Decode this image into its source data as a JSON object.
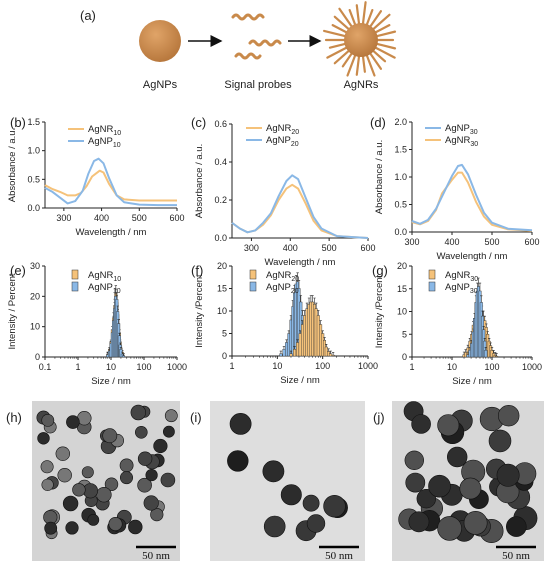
{
  "figure": {
    "top": {
      "label": "(a)",
      "captions": [
        "AgNPs",
        "Signal probes",
        "AgNRs"
      ],
      "colors": {
        "particle": "#c98a4b",
        "probe": "#c98a4b",
        "arrow": "#111111"
      }
    },
    "tem": [
      {
        "label": "(h)",
        "scalebar": "50 nm"
      },
      {
        "label": "(i)",
        "scalebar": "50 nm"
      },
      {
        "label": "(j)",
        "scalebar": "50 nm"
      }
    ]
  },
  "colors": {
    "orange": "#f5c27a",
    "blue": "#8ab8e6",
    "bar_outline": "#333333"
  },
  "chart_data": [
    {
      "id": "b",
      "label": "(b)",
      "type": "line",
      "xlabel": "Wavelength / nm",
      "ylabel": "Absorbance / a.u.",
      "xlim": [
        250,
        600
      ],
      "ylim": [
        0,
        1.5
      ],
      "xticks": [
        "300",
        "400",
        "500",
        "600"
      ],
      "yticks": [
        "0.0",
        "0.5",
        "1.0",
        "1.5"
      ],
      "legend": [
        {
          "main": "AgNR",
          "sub": "10",
          "color": "orange"
        },
        {
          "main": "AgNP",
          "sub": "10",
          "color": "blue"
        }
      ],
      "series": [
        {
          "name": "AgNR10",
          "color": "orange",
          "points": [
            [
              250,
              0.4
            ],
            [
              270,
              0.33
            ],
            [
              290,
              0.28
            ],
            [
              310,
              0.22
            ],
            [
              330,
              0.22
            ],
            [
              345,
              0.26
            ],
            [
              360,
              0.38
            ],
            [
              375,
              0.55
            ],
            [
              385,
              0.6
            ],
            [
              395,
              0.65
            ],
            [
              405,
              0.62
            ],
            [
              420,
              0.42
            ],
            [
              440,
              0.22
            ],
            [
              460,
              0.15
            ],
            [
              500,
              0.13
            ],
            [
              550,
              0.13
            ],
            [
              600,
              0.13
            ]
          ]
        },
        {
          "name": "AgNP10",
          "color": "blue",
          "points": [
            [
              250,
              0.35
            ],
            [
              270,
              0.28
            ],
            [
              290,
              0.18
            ],
            [
              310,
              0.08
            ],
            [
              330,
              0.12
            ],
            [
              350,
              0.3
            ],
            [
              365,
              0.6
            ],
            [
              380,
              0.82
            ],
            [
              392,
              0.86
            ],
            [
              405,
              0.78
            ],
            [
              420,
              0.52
            ],
            [
              440,
              0.22
            ],
            [
              460,
              0.1
            ],
            [
              500,
              0.06
            ],
            [
              550,
              0.05
            ],
            [
              600,
              0.05
            ]
          ]
        }
      ]
    },
    {
      "id": "c",
      "label": "(c)",
      "type": "line",
      "xlabel": "Wavelength / nm",
      "ylabel": "Absorbance / a.u.",
      "xlim": [
        250,
        600
      ],
      "ylim": [
        0,
        0.6
      ],
      "xticks": [
        "300",
        "400",
        "500",
        "600"
      ],
      "yticks": [
        "0.0",
        "0.2",
        "0.4",
        "0.6"
      ],
      "legend": [
        {
          "main": "AgNR",
          "sub": "20",
          "color": "orange"
        },
        {
          "main": "AgNP",
          "sub": "20",
          "color": "blue"
        }
      ],
      "series": [
        {
          "name": "AgNR20",
          "color": "orange",
          "points": [
            [
              250,
              0.08
            ],
            [
              270,
              0.05
            ],
            [
              290,
              0.03
            ],
            [
              310,
              0.04
            ],
            [
              330,
              0.07
            ],
            [
              350,
              0.12
            ],
            [
              370,
              0.2
            ],
            [
              390,
              0.26
            ],
            [
              405,
              0.28
            ],
            [
              420,
              0.26
            ],
            [
              440,
              0.18
            ],
            [
              460,
              0.09
            ],
            [
              480,
              0.04
            ],
            [
              520,
              0.01
            ],
            [
              600,
              0.0
            ]
          ]
        },
        {
          "name": "AgNP20",
          "color": "blue",
          "points": [
            [
              250,
              0.08
            ],
            [
              270,
              0.05
            ],
            [
              290,
              0.03
            ],
            [
              310,
              0.04
            ],
            [
              330,
              0.08
            ],
            [
              350,
              0.13
            ],
            [
              370,
              0.22
            ],
            [
              390,
              0.3
            ],
            [
              405,
              0.33
            ],
            [
              420,
              0.31
            ],
            [
              440,
              0.21
            ],
            [
              460,
              0.11
            ],
            [
              480,
              0.05
            ],
            [
              520,
              0.01
            ],
            [
              600,
              0.0
            ]
          ]
        }
      ]
    },
    {
      "id": "d",
      "label": "(d)",
      "type": "line",
      "xlabel": "Wavelength / nm",
      "ylabel": "Absorbance / a.u.",
      "xlim": [
        300,
        600
      ],
      "ylim": [
        0,
        2.0
      ],
      "xticks": [
        "300",
        "400",
        "500",
        "600"
      ],
      "yticks": [
        "0.0",
        "0.5",
        "1.0",
        "1.5",
        "2.0"
      ],
      "legend": [
        {
          "main": "AgNP",
          "sub": "30",
          "color": "blue"
        },
        {
          "main": "AgNR",
          "sub": "30",
          "color": "orange"
        }
      ],
      "series": [
        {
          "name": "AgNR30",
          "color": "orange",
          "points": [
            [
              300,
              0.18
            ],
            [
              320,
              0.14
            ],
            [
              340,
              0.2
            ],
            [
              360,
              0.4
            ],
            [
              375,
              0.7
            ],
            [
              385,
              0.8
            ],
            [
              400,
              0.95
            ],
            [
              415,
              1.08
            ],
            [
              425,
              1.08
            ],
            [
              440,
              0.9
            ],
            [
              460,
              0.55
            ],
            [
              480,
              0.28
            ],
            [
              500,
              0.13
            ],
            [
              540,
              0.05
            ],
            [
              600,
              0.02
            ]
          ]
        },
        {
          "name": "AgNP30",
          "color": "blue",
          "points": [
            [
              300,
              0.2
            ],
            [
              320,
              0.15
            ],
            [
              340,
              0.22
            ],
            [
              360,
              0.42
            ],
            [
              380,
              0.72
            ],
            [
              400,
              1.02
            ],
            [
              415,
              1.2
            ],
            [
              425,
              1.22
            ],
            [
              440,
              1.05
            ],
            [
              460,
              0.68
            ],
            [
              480,
              0.35
            ],
            [
              500,
              0.17
            ],
            [
              540,
              0.06
            ],
            [
              600,
              0.03
            ]
          ]
        }
      ]
    },
    {
      "id": "e",
      "label": "(e)",
      "type": "bar",
      "xlabel": "Size / nm",
      "ylabel": "Intensity / Percent",
      "xscale": "log",
      "xlim": [
        0.1,
        1000
      ],
      "ylim": [
        0,
        30
      ],
      "xticks": [
        "0.1",
        "1",
        "10",
        "100",
        "1000"
      ],
      "yticks": [
        "0",
        "10",
        "20",
        "30"
      ],
      "legend": [
        {
          "main": "AgNR",
          "sub": "10",
          "color": "orange"
        },
        {
          "main": "AgNP",
          "sub": "10",
          "color": "blue"
        }
      ],
      "series": [
        {
          "name": "AgNR10",
          "color": "orange",
          "x": [
            8,
            9,
            10,
            11,
            12,
            13,
            14,
            15,
            16,
            17,
            18,
            19,
            20,
            22,
            24
          ],
          "values": [
            1,
            2.5,
            5,
            9,
            13,
            17,
            21,
            18,
            14,
            11,
            8,
            5,
            3,
            1.5,
            0.5
          ]
        },
        {
          "name": "AgNP10",
          "color": "blue",
          "x": [
            8,
            9,
            10,
            11,
            12,
            13,
            14,
            15,
            16,
            17,
            18,
            19,
            20,
            22,
            24
          ],
          "values": [
            0.8,
            2,
            4.5,
            8,
            12,
            16,
            20,
            19,
            15,
            11,
            7,
            4,
            2.5,
            1,
            0.4
          ]
        }
      ]
    },
    {
      "id": "f",
      "label": "(f)",
      "type": "bar",
      "xlabel": "Size / nm",
      "ylabel": "Intensity /Percent",
      "xscale": "log",
      "xlim": [
        1,
        1000
      ],
      "ylim": [
        0,
        20
      ],
      "xticks": [
        "1",
        "10",
        "100",
        "1000"
      ],
      "yticks": [
        "0",
        "5",
        "10",
        "15",
        "20"
      ],
      "legend": [
        {
          "main": "AgNR",
          "sub": "20",
          "color": "orange"
        },
        {
          "main": "AgNP",
          "sub": "20",
          "color": "blue"
        }
      ],
      "series": [
        {
          "name": "AgNP20",
          "color": "blue",
          "x": [
            12,
            14,
            16,
            18,
            20,
            22,
            24,
            26,
            28,
            30,
            33,
            36,
            40,
            44,
            48,
            52
          ],
          "values": [
            0.5,
            1.5,
            3,
            5,
            8,
            11,
            14,
            16,
            16.5,
            15,
            12,
            9,
            6,
            3.5,
            1.5,
            0.5
          ]
        },
        {
          "name": "AgNR20",
          "color": "orange",
          "x": [
            20,
            24,
            28,
            32,
            36,
            40,
            45,
            50,
            55,
            60,
            66,
            72,
            80,
            90,
            100,
            110,
            120,
            135,
            150,
            170
          ],
          "values": [
            0.5,
            1.5,
            3,
            5,
            7,
            9,
            10.5,
            11.5,
            12,
            12,
            11.5,
            10.5,
            9,
            7,
            5,
            3.5,
            2,
            1,
            0.5,
            0.2
          ]
        }
      ]
    },
    {
      "id": "g",
      "label": "(g)",
      "type": "bar",
      "xlabel": "Size / nm",
      "ylabel": "Intensity /Percent",
      "xscale": "log",
      "xlim": [
        1,
        1000
      ],
      "ylim": [
        0,
        20
      ],
      "xticks": [
        "1",
        "10",
        "100",
        "1000"
      ],
      "yticks": [
        "0",
        "5",
        "10",
        "15",
        "20"
      ],
      "legend": [
        {
          "main": "AgNR",
          "sub": "30",
          "color": "orange"
        },
        {
          "main": "AgNP",
          "sub": "30",
          "color": "blue"
        }
      ],
      "series": [
        {
          "name": "AgNR30",
          "color": "orange",
          "x": [
            20,
            22,
            25,
            28,
            31,
            34,
            37,
            40,
            44,
            48,
            52,
            56,
            61,
            66,
            72,
            78,
            85,
            92,
            100,
            110,
            120,
            130
          ],
          "values": [
            0.5,
            1,
            2,
            3.5,
            5,
            7,
            8.5,
            9.5,
            10.5,
            11,
            10.5,
            10,
            9,
            8,
            6.5,
            5,
            3.5,
            2.5,
            1.5,
            0.8,
            0.4,
            0.2
          ]
        },
        {
          "name": "AgNP30",
          "color": "blue",
          "x": [
            25,
            28,
            31,
            34,
            37,
            40,
            43,
            46,
            50,
            54,
            58,
            62,
            66,
            70
          ],
          "values": [
            0.5,
            1.5,
            3,
            5.5,
            8.5,
            12,
            14.5,
            15.5,
            14.5,
            12,
            9,
            6,
            3.5,
            1.5
          ]
        }
      ]
    }
  ]
}
